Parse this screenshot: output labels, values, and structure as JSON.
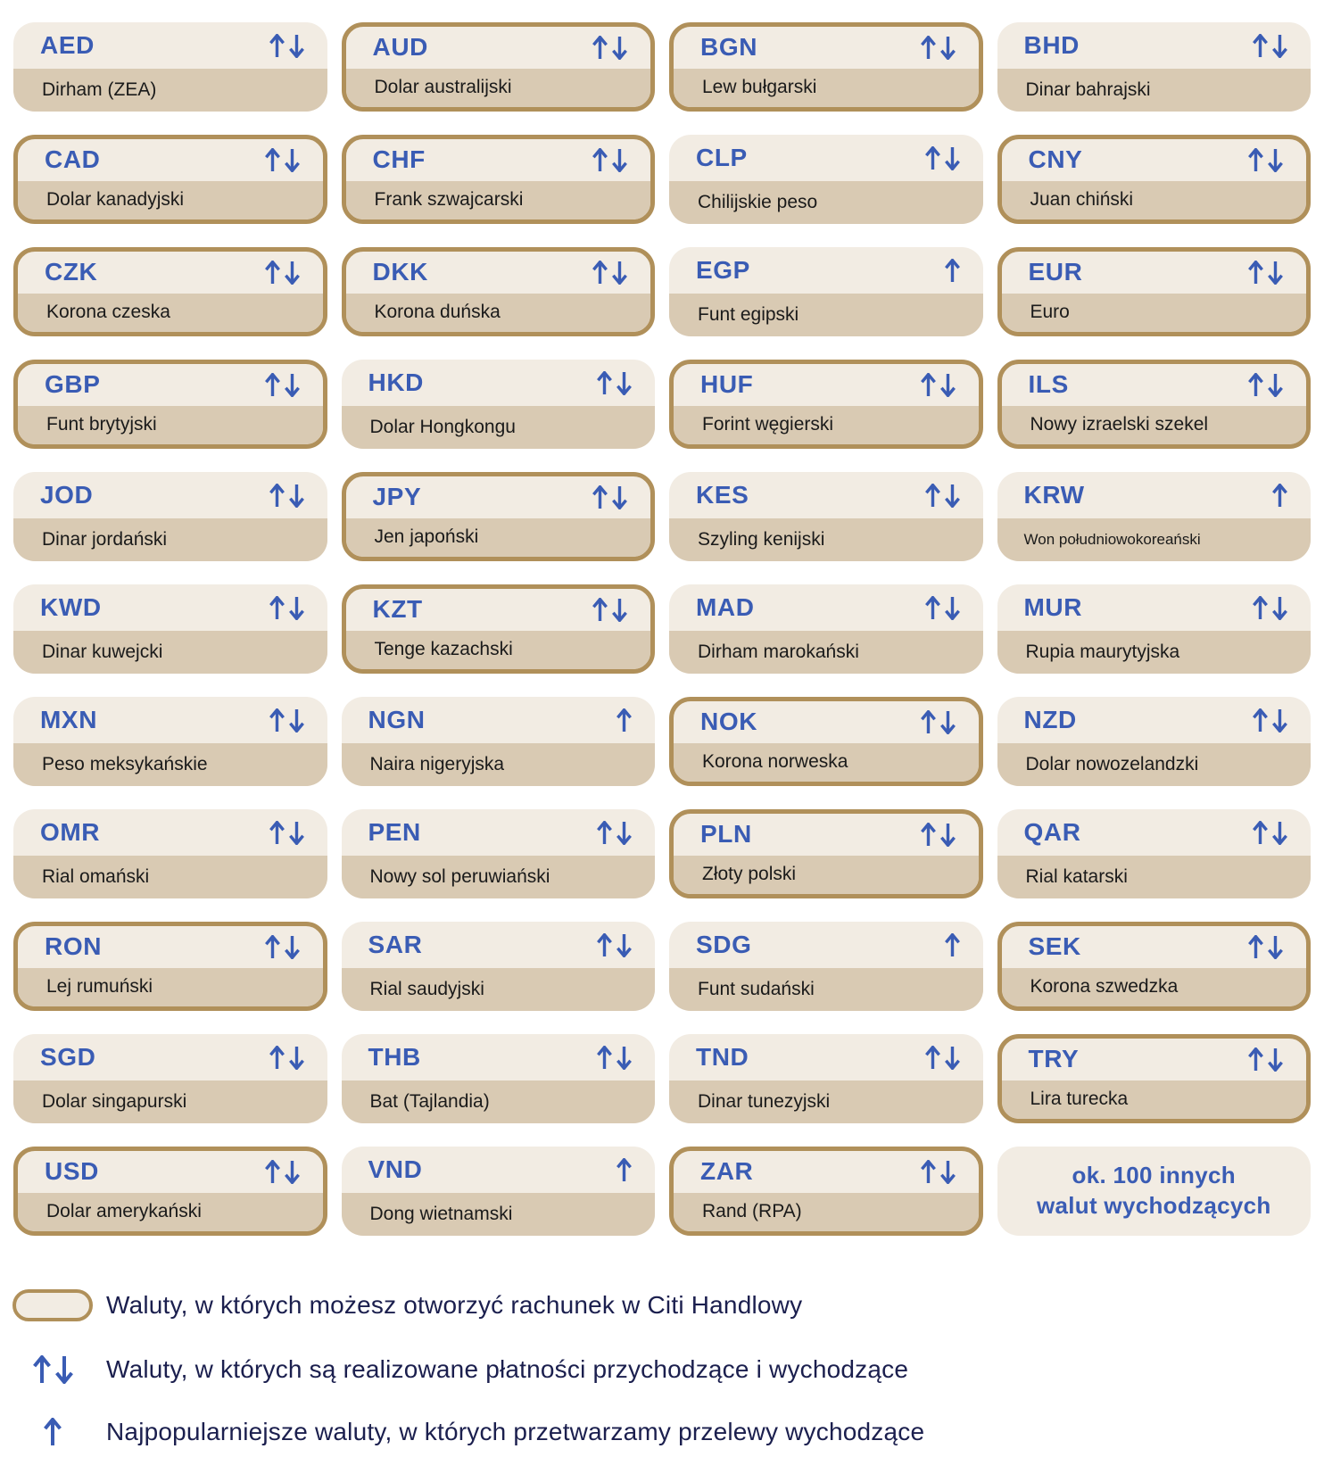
{
  "colors": {
    "accent_blue": "#3A5CB4",
    "gold_border": "#B0905A",
    "card_top_bg": "#F2ECE3",
    "card_bottom_bg": "#D9CAB3",
    "name_text": "#1A1A1A",
    "legend_text": "#1B1F4E",
    "page_bg": "#FFFFFF"
  },
  "currencies": [
    {
      "code": "AED",
      "name": "Dirham (ZEA)",
      "arrows": "both",
      "account": false
    },
    {
      "code": "AUD",
      "name": "Dolar australijski",
      "arrows": "both",
      "account": true
    },
    {
      "code": "BGN",
      "name": "Lew bułgarski",
      "arrows": "both",
      "account": true
    },
    {
      "code": "BHD",
      "name": "Dinar bahrajski",
      "arrows": "both",
      "account": false
    },
    {
      "code": "CAD",
      "name": "Dolar kanadyjski",
      "arrows": "both",
      "account": true
    },
    {
      "code": "CHF",
      "name": "Frank szwajcarski",
      "arrows": "both",
      "account": true
    },
    {
      "code": "CLP",
      "name": "Chilijskie peso",
      "arrows": "both",
      "account": false
    },
    {
      "code": "CNY",
      "name": "Juan chiński",
      "arrows": "both",
      "account": true
    },
    {
      "code": "CZK",
      "name": "Korona czeska",
      "arrows": "both",
      "account": true
    },
    {
      "code": "DKK",
      "name": "Korona duńska",
      "arrows": "both",
      "account": true
    },
    {
      "code": "EGP",
      "name": "Funt egipski",
      "arrows": "up",
      "account": false
    },
    {
      "code": "EUR",
      "name": "Euro",
      "arrows": "both",
      "account": true
    },
    {
      "code": "GBP",
      "name": "Funt brytyjski",
      "arrows": "both",
      "account": true
    },
    {
      "code": "HKD",
      "name": "Dolar Hongkongu",
      "arrows": "both",
      "account": false
    },
    {
      "code": "HUF",
      "name": "Forint węgierski",
      "arrows": "both",
      "account": true
    },
    {
      "code": "ILS",
      "name": "Nowy izraelski szekel",
      "arrows": "both",
      "account": true
    },
    {
      "code": "JOD",
      "name": "Dinar jordański",
      "arrows": "both",
      "account": false
    },
    {
      "code": "JPY",
      "name": "Jen japoński",
      "arrows": "both",
      "account": true
    },
    {
      "code": "KES",
      "name": "Szyling kenijski",
      "arrows": "both",
      "account": false
    },
    {
      "code": "KRW",
      "name": "Won południowokoreański",
      "arrows": "up",
      "account": false
    },
    {
      "code": "KWD",
      "name": "Dinar kuwejcki",
      "arrows": "both",
      "account": false
    },
    {
      "code": "KZT",
      "name": "Tenge kazachski",
      "arrows": "both",
      "account": true
    },
    {
      "code": "MAD",
      "name": "Dirham marokański",
      "arrows": "both",
      "account": false
    },
    {
      "code": "MUR",
      "name": "Rupia maurytyjska",
      "arrows": "both",
      "account": false
    },
    {
      "code": "MXN",
      "name": "Peso meksykańskie",
      "arrows": "both",
      "account": false
    },
    {
      "code": "NGN",
      "name": "Naira nigeryjska",
      "arrows": "up",
      "account": false
    },
    {
      "code": "NOK",
      "name": "Korona norweska",
      "arrows": "both",
      "account": true
    },
    {
      "code": "NZD",
      "name": "Dolar nowozelandzki",
      "arrows": "both",
      "account": false
    },
    {
      "code": "OMR",
      "name": "Rial omański",
      "arrows": "both",
      "account": false
    },
    {
      "code": "PEN",
      "name": "Nowy sol peruwiański",
      "arrows": "both",
      "account": false
    },
    {
      "code": "PLN",
      "name": "Złoty polski",
      "arrows": "both",
      "account": true
    },
    {
      "code": "QAR",
      "name": "Rial katarski",
      "arrows": "both",
      "account": false
    },
    {
      "code": "RON",
      "name": "Lej rumuński",
      "arrows": "both",
      "account": true
    },
    {
      "code": "SAR",
      "name": "Rial saudyjski",
      "arrows": "both",
      "account": false
    },
    {
      "code": "SDG",
      "name": "Funt sudański",
      "arrows": "up",
      "account": false
    },
    {
      "code": "SEK",
      "name": "Korona szwedzka",
      "arrows": "both",
      "account": true
    },
    {
      "code": "SGD",
      "name": "Dolar singapurski",
      "arrows": "both",
      "account": false
    },
    {
      "code": "THB",
      "name": "Bat (Tajlandia)",
      "arrows": "both",
      "account": false
    },
    {
      "code": "TND",
      "name": "Dinar tunezyjski",
      "arrows": "both",
      "account": false
    },
    {
      "code": "TRY",
      "name": "Lira turecka",
      "arrows": "both",
      "account": true
    },
    {
      "code": "USD",
      "name": "Dolar amerykański",
      "arrows": "both",
      "account": true
    },
    {
      "code": "VND",
      "name": "Dong wietnamski",
      "arrows": "up",
      "account": false
    },
    {
      "code": "ZAR",
      "name": "Rand (RPA)",
      "arrows": "both",
      "account": true
    }
  ],
  "more_card": {
    "label": "ok. 100 innych\nwalut wychodzących"
  },
  "legend": {
    "account": "Waluty, w których możesz otworzyć rachunek w Citi Handlowy",
    "in_out": "Waluty, w których są realizowane płatności przychodzące i wychodzące",
    "outgoing": "Najpopularniejsze waluty, w których przetwarzamy przelewy wychodzące"
  }
}
